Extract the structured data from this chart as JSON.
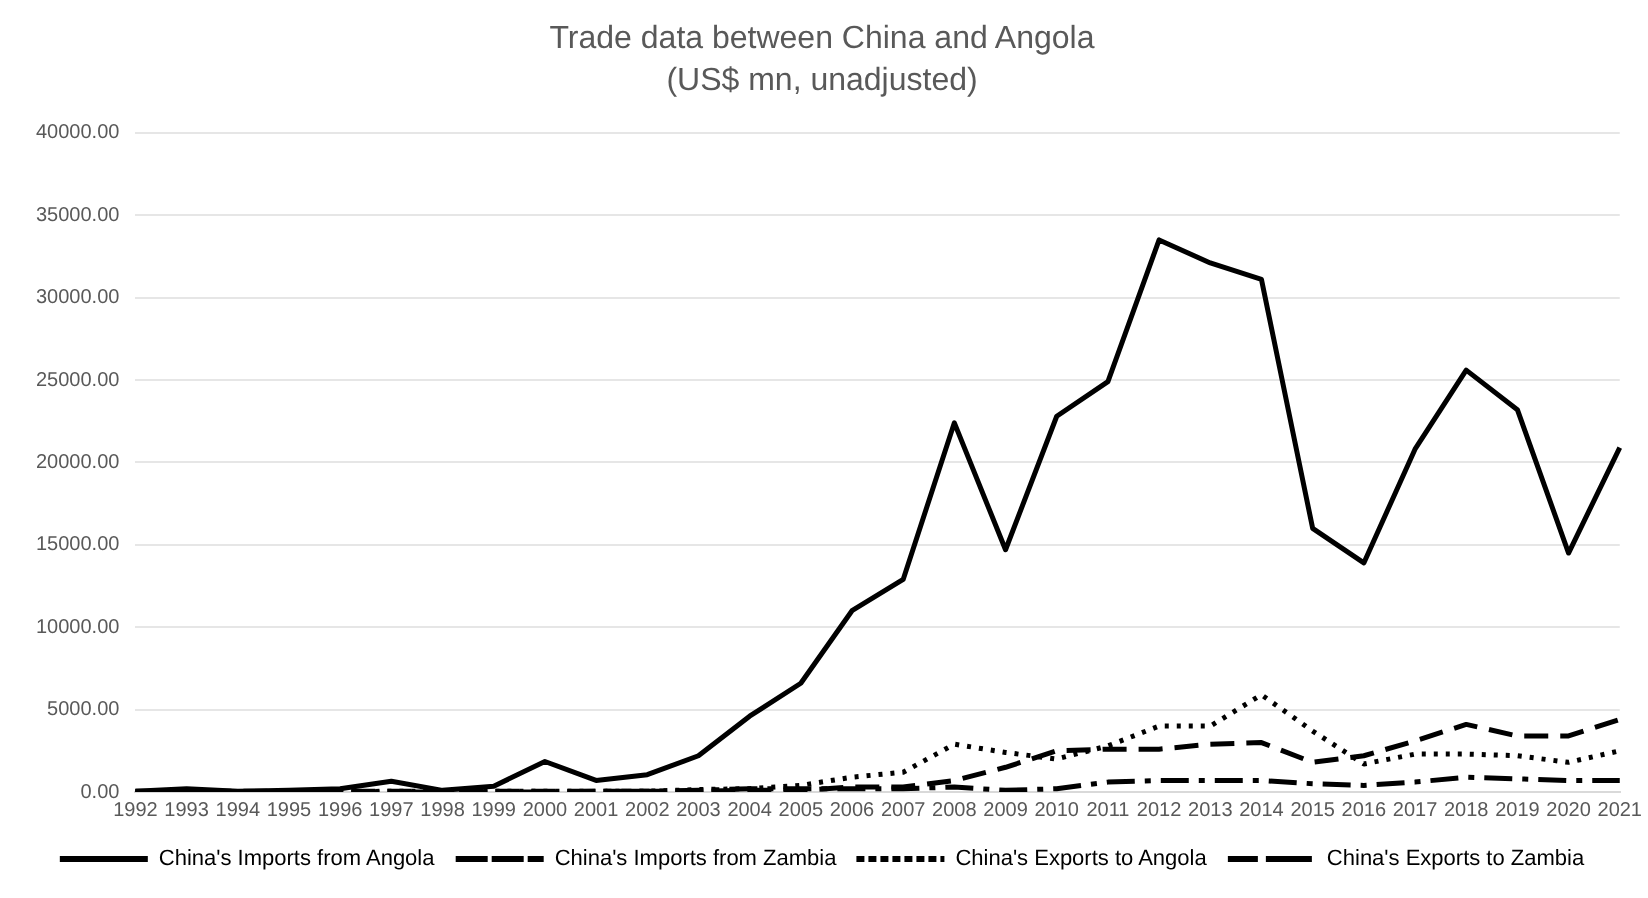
{
  "chart_data": {
    "type": "line",
    "title": "Trade data between China and Angola",
    "subtitle": "(US$ mn, unadjusted)",
    "categories": [
      "1992",
      "1993",
      "1994",
      "1995",
      "1996",
      "1997",
      "1998",
      "1999",
      "2000",
      "2001",
      "2002",
      "2003",
      "2004",
      "2005",
      "2006",
      "2007",
      "2008",
      "2009",
      "2010",
      "2011",
      "2012",
      "2013",
      "2014",
      "2015",
      "2016",
      "2017",
      "2018",
      "2019",
      "2020",
      "2021"
    ],
    "series": [
      {
        "name": "China's Imports from Angola",
        "color": "#000000",
        "line_style": "solid",
        "values": [
          50,
          200,
          50,
          100,
          200,
          650,
          100,
          350,
          1850,
          700,
          1050,
          2200,
          4600,
          6600,
          11000,
          12900,
          22400,
          14700,
          22800,
          24900,
          33500,
          32100,
          31100,
          16000,
          13900,
          20800,
          25600,
          23200,
          14500,
          20900
        ]
      },
      {
        "name": "China's Imports from Zambia",
        "color": "#000000",
        "line_style": "dashed",
        "values": [
          50,
          50,
          50,
          50,
          50,
          50,
          50,
          50,
          50,
          50,
          50,
          50,
          100,
          100,
          300,
          300,
          700,
          1500,
          2500,
          2600,
          2600,
          2900,
          3000,
          1800,
          2200,
          3100,
          4100,
          3400,
          3400,
          4400
        ]
      },
      {
        "name": "China's Exports to Angola",
        "color": "#000000",
        "line_style": "dotted",
        "values": [
          0,
          0,
          0,
          0,
          0,
          50,
          50,
          50,
          50,
          50,
          50,
          150,
          200,
          400,
          900,
          1200,
          2900,
          2400,
          2000,
          2800,
          4000,
          4000,
          5900,
          3700,
          1700,
          2300,
          2300,
          2200,
          1800,
          2500
        ]
      },
      {
        "name": "China's Exports to Zambia",
        "color": "#000000",
        "line_style": "dashdot",
        "values": [
          0,
          0,
          0,
          0,
          0,
          0,
          0,
          0,
          0,
          50,
          50,
          100,
          200,
          200,
          200,
          200,
          300,
          100,
          200,
          600,
          700,
          700,
          700,
          500,
          400,
          600,
          900,
          800,
          700,
          700
        ]
      }
    ],
    "ylim": [
      0,
      40000
    ],
    "yticks": [
      {
        "value": 0,
        "label": "0.00"
      },
      {
        "value": 5000,
        "label": "5000.00"
      },
      {
        "value": 10000,
        "label": "10000.00"
      },
      {
        "value": 15000,
        "label": "15000.00"
      },
      {
        "value": 20000,
        "label": "20000.00"
      },
      {
        "value": 25000,
        "label": "25000.00"
      },
      {
        "value": 30000,
        "label": "30000.00"
      },
      {
        "value": 35000,
        "label": "35000.00"
      },
      {
        "value": 40000,
        "label": "40000.00"
      }
    ],
    "grid": "y",
    "legend": "bottom",
    "marker": "none"
  }
}
